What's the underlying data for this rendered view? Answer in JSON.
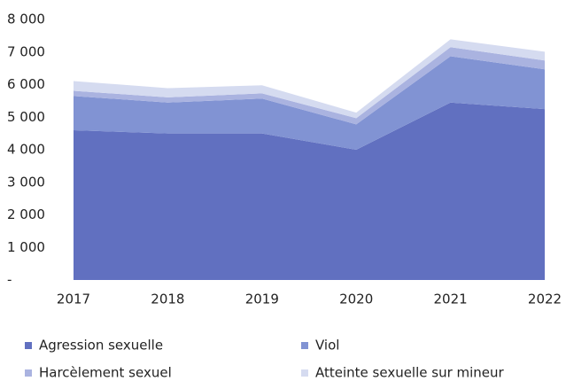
{
  "chart_data": {
    "type": "stacked_area",
    "categories": [
      "2017",
      "2018",
      "2019",
      "2020",
      "2021",
      "2022"
    ],
    "series": [
      {
        "name": "Agression sexuelle",
        "color": "#6170c0",
        "values": [
          4600,
          4500,
          4500,
          4000,
          5450,
          5250
        ]
      },
      {
        "name": "Viol",
        "color": "#8193d3",
        "values": [
          1050,
          950,
          1070,
          780,
          1420,
          1220
        ]
      },
      {
        "name": "Harcèlement sexuel",
        "color": "#aab3e0",
        "values": [
          160,
          160,
          160,
          190,
          280,
          270
        ]
      },
      {
        "name": "Atteinte sexuelle sur mineur",
        "color": "#d5dbf0",
        "values": [
          300,
          280,
          250,
          170,
          240,
          270
        ]
      }
    ],
    "ylim": [
      0,
      8000
    ],
    "yticks": [
      {
        "value": 0,
        "label": "-"
      },
      {
        "value": 1000,
        "label": "1 000"
      },
      {
        "value": 2000,
        "label": "2 000"
      },
      {
        "value": 3000,
        "label": "3 000"
      },
      {
        "value": 4000,
        "label": "4 000"
      },
      {
        "value": 5000,
        "label": "5 000"
      },
      {
        "value": 6000,
        "label": "6 000"
      },
      {
        "value": 7000,
        "label": "7 000"
      },
      {
        "value": 8000,
        "label": "8 000"
      }
    ],
    "grid": false,
    "legend": "bottom"
  }
}
